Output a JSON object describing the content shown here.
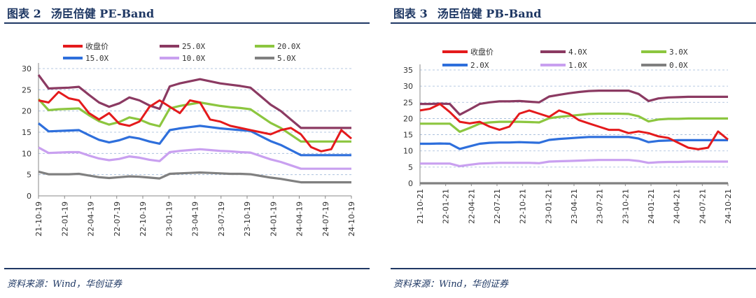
{
  "panels": [
    {
      "fig_label": "图表 2",
      "fig_title": "汤臣倍健 PE-Band",
      "source": "资料来源：Wind，华创证券"
    },
    {
      "fig_label": "图表 3",
      "fig_title": "汤臣倍健 PB-Band",
      "source": "资料来源：Wind，华创证券"
    }
  ],
  "chart_data": [
    {
      "type": "line",
      "title": "汤臣倍健 PE-Band",
      "xlabel": "",
      "ylabel": "",
      "ylim": [
        0,
        30
      ],
      "yticks": [
        0,
        5,
        10,
        15,
        20,
        25,
        30
      ],
      "xticks": [
        "21-10-19",
        "22-01-19",
        "22-04-19",
        "22-07-19",
        "22-10-19",
        "23-01-19",
        "23-04-19",
        "23-07-19",
        "23-10-19",
        "24-01-19",
        "24-04-19",
        "24-07-19",
        "24-10-19"
      ],
      "grid": "horizontal",
      "legend": "top",
      "series": [
        {
          "name": "收盘价",
          "color": "#e41a1c",
          "values": [
            22.5,
            22.0,
            24.5,
            23.0,
            22.5,
            19.5,
            18.0,
            19.5,
            17.0,
            16.5,
            17.5,
            21.0,
            22.5,
            21.0,
            19.5,
            22.5,
            22.0,
            18.0,
            17.5,
            16.5,
            16.0,
            15.5,
            15.0,
            14.5,
            15.5,
            16.0,
            14.5,
            11.5,
            10.5,
            11.0,
            15.5,
            13.5
          ]
        },
        {
          "name": "25.0X",
          "color": "#8b3a62",
          "values": [
            28.5,
            25.3,
            25.4,
            25.5,
            25.7,
            23.8,
            22.0,
            21.0,
            21.8,
            23.2,
            22.5,
            21.3,
            20.5,
            25.8,
            26.5,
            27.0,
            27.5,
            27.0,
            26.5,
            26.2,
            25.9,
            25.5,
            23.5,
            21.5,
            20.0,
            18.0,
            16.0,
            16.0,
            16.0,
            16.0,
            16.0,
            16.0
          ]
        },
        {
          "name": "20.0X",
          "color": "#8cc63f",
          "values": [
            22.8,
            20.2,
            20.4,
            20.5,
            20.6,
            19.0,
            17.6,
            16.8,
            17.4,
            18.5,
            18.0,
            17.0,
            16.4,
            20.6,
            21.2,
            21.6,
            22.0,
            21.6,
            21.2,
            20.9,
            20.7,
            20.4,
            18.8,
            17.2,
            16.0,
            14.4,
            12.8,
            12.8,
            12.8,
            12.8,
            12.8,
            12.8
          ]
        },
        {
          "name": "15.0X",
          "color": "#2e6fdc",
          "values": [
            17.1,
            15.2,
            15.3,
            15.4,
            15.5,
            14.3,
            13.2,
            12.6,
            13.1,
            13.9,
            13.5,
            12.8,
            12.3,
            15.5,
            15.9,
            16.2,
            16.5,
            16.2,
            15.9,
            15.7,
            15.5,
            15.3,
            14.1,
            12.9,
            12.0,
            10.8,
            9.6,
            9.6,
            9.6,
            9.6,
            9.6,
            9.6
          ]
        },
        {
          "name": "10.0X",
          "color": "#c9a0f0",
          "values": [
            11.4,
            10.1,
            10.2,
            10.3,
            10.3,
            9.5,
            8.8,
            8.4,
            8.7,
            9.3,
            9.0,
            8.5,
            8.2,
            10.3,
            10.6,
            10.8,
            11.0,
            10.8,
            10.6,
            10.5,
            10.3,
            10.2,
            9.4,
            8.6,
            8.0,
            7.2,
            6.4,
            6.4,
            6.4,
            6.4,
            6.4,
            6.4
          ]
        },
        {
          "name": "5.0X",
          "color": "#808080",
          "values": [
            5.7,
            5.1,
            5.1,
            5.1,
            5.2,
            4.8,
            4.4,
            4.2,
            4.4,
            4.6,
            4.5,
            4.3,
            4.1,
            5.2,
            5.3,
            5.4,
            5.5,
            5.4,
            5.3,
            5.2,
            5.2,
            5.1,
            4.7,
            4.3,
            4.0,
            3.6,
            3.2,
            3.2,
            3.2,
            3.2,
            3.2,
            3.2
          ]
        }
      ]
    },
    {
      "type": "line",
      "title": "汤臣倍健 PB-Band",
      "xlabel": "",
      "ylabel": "",
      "ylim": [
        0,
        35
      ],
      "yticks": [
        0,
        5,
        10,
        15,
        20,
        25,
        30,
        35
      ],
      "xticks": [
        "21-10-21",
        "22-01-21",
        "22-04-21",
        "22-07-21",
        "22-10-21",
        "23-01-21",
        "23-04-21",
        "23-07-21",
        "23-10-21",
        "24-01-21",
        "24-04-21",
        "24-07-21",
        "24-10-21"
      ],
      "grid": "horizontal",
      "legend": "top",
      "series": [
        {
          "name": "收盘价",
          "color": "#e41a1c",
          "values": [
            22.5,
            23.0,
            24.5,
            22.0,
            19.0,
            18.5,
            19.0,
            17.5,
            16.5,
            17.5,
            21.5,
            22.5,
            21.5,
            20.5,
            22.5,
            21.5,
            19.5,
            18.5,
            17.5,
            16.5,
            16.5,
            15.5,
            16.0,
            15.5,
            14.5,
            14.0,
            12.5,
            11.0,
            10.5,
            11.0,
            16.0,
            13.5
          ]
        },
        {
          "name": "4.0X",
          "color": "#8b3a62",
          "values": [
            24.5,
            24.5,
            24.6,
            24.5,
            21.2,
            22.8,
            24.5,
            25.0,
            25.3,
            25.3,
            25.4,
            25.2,
            25.0,
            26.8,
            27.3,
            27.8,
            28.2,
            28.5,
            28.6,
            28.6,
            28.6,
            28.6,
            27.6,
            25.4,
            26.2,
            26.5,
            26.6,
            26.7,
            26.7,
            26.7,
            26.7,
            26.7
          ]
        },
        {
          "name": "3.0X",
          "color": "#8cc63f",
          "values": [
            18.4,
            18.4,
            18.4,
            18.4,
            15.9,
            17.1,
            18.4,
            18.8,
            19.0,
            19.0,
            19.0,
            18.9,
            18.8,
            20.1,
            20.5,
            20.8,
            21.1,
            21.4,
            21.5,
            21.5,
            21.5,
            21.4,
            20.7,
            19.1,
            19.7,
            19.9,
            19.9,
            20.0,
            20.0,
            20.0,
            20.0,
            20.0
          ]
        },
        {
          "name": "2.0X",
          "color": "#2e6fdc",
          "values": [
            12.2,
            12.2,
            12.3,
            12.2,
            10.6,
            11.4,
            12.2,
            12.5,
            12.6,
            12.6,
            12.7,
            12.6,
            12.5,
            13.4,
            13.7,
            13.9,
            14.1,
            14.3,
            14.3,
            14.3,
            14.3,
            14.3,
            13.8,
            12.7,
            13.1,
            13.2,
            13.3,
            13.3,
            13.3,
            13.3,
            13.3,
            13.3
          ]
        },
        {
          "name": "1.0X",
          "color": "#c9a0f0",
          "values": [
            6.1,
            6.1,
            6.1,
            6.1,
            5.3,
            5.7,
            6.1,
            6.2,
            6.3,
            6.3,
            6.3,
            6.3,
            6.2,
            6.7,
            6.8,
            6.9,
            7.0,
            7.1,
            7.2,
            7.2,
            7.2,
            7.2,
            6.9,
            6.3,
            6.5,
            6.6,
            6.6,
            6.7,
            6.7,
            6.7,
            6.7,
            6.7
          ]
        },
        {
          "name": "0.0X",
          "color": "#808080",
          "values": [
            0,
            0,
            0,
            0,
            0,
            0,
            0,
            0,
            0,
            0,
            0,
            0,
            0,
            0,
            0,
            0,
            0,
            0,
            0,
            0,
            0,
            0,
            0,
            0,
            0,
            0,
            0,
            0,
            0,
            0,
            0,
            0
          ]
        }
      ]
    }
  ]
}
